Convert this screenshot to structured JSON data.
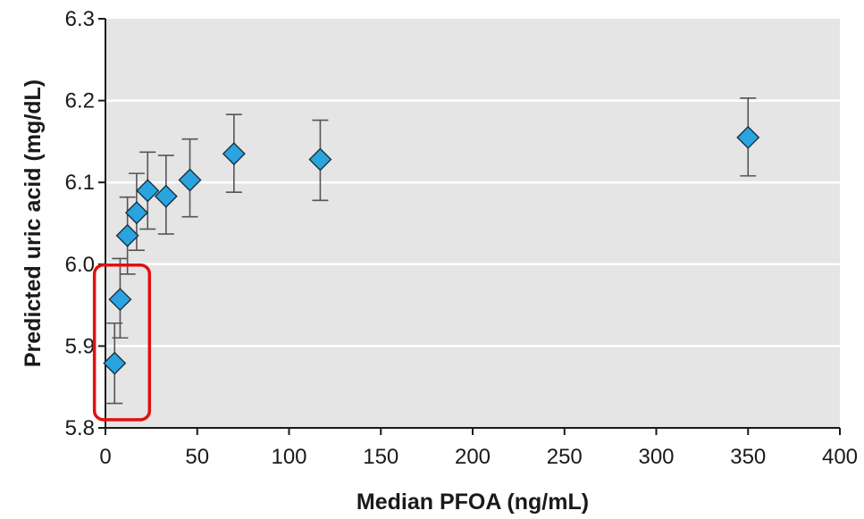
{
  "chart_data": {
    "type": "scatter",
    "title": "",
    "xlabel": "Median PFOA (ng/mL)",
    "ylabel": "Predicted uric acid (mg/dL)",
    "xlim": [
      0,
      400
    ],
    "ylim": [
      5.8,
      6.3
    ],
    "x_ticks": [
      0,
      50,
      100,
      150,
      200,
      250,
      300,
      350,
      400
    ],
    "y_ticks": [
      "5.8",
      "5.9",
      "6.0",
      "6.1",
      "6.2",
      "6.3"
    ],
    "grid": "horizontal",
    "marker": "diamond",
    "colors": {
      "plot_background": "#e5e5e5",
      "gridline": "#ffffff",
      "marker_fill": "#2aa4df",
      "marker_edge": "#1a3040",
      "error_bar": "#555555",
      "highlight_box": "#e01010"
    },
    "points": [
      {
        "x": 5,
        "y": 5.879,
        "low": 5.83,
        "high": 5.928
      },
      {
        "x": 8,
        "y": 5.957,
        "low": 5.91,
        "high": 6.007
      },
      {
        "x": 12,
        "y": 6.035,
        "low": 5.988,
        "high": 6.082
      },
      {
        "x": 17,
        "y": 6.063,
        "low": 6.017,
        "high": 6.111
      },
      {
        "x": 23,
        "y": 6.09,
        "low": 6.043,
        "high": 6.137
      },
      {
        "x": 33,
        "y": 6.083,
        "low": 6.037,
        "high": 6.133
      },
      {
        "x": 46,
        "y": 6.103,
        "low": 6.058,
        "high": 6.153
      },
      {
        "x": 70,
        "y": 6.135,
        "low": 6.088,
        "high": 6.183
      },
      {
        "x": 117,
        "y": 6.128,
        "low": 6.078,
        "high": 6.176
      },
      {
        "x": 350,
        "y": 6.155,
        "low": 6.108,
        "high": 6.203
      }
    ],
    "highlight": {
      "x_range": [
        -6,
        24
      ],
      "y_range": [
        5.81,
        5.999
      ]
    }
  }
}
